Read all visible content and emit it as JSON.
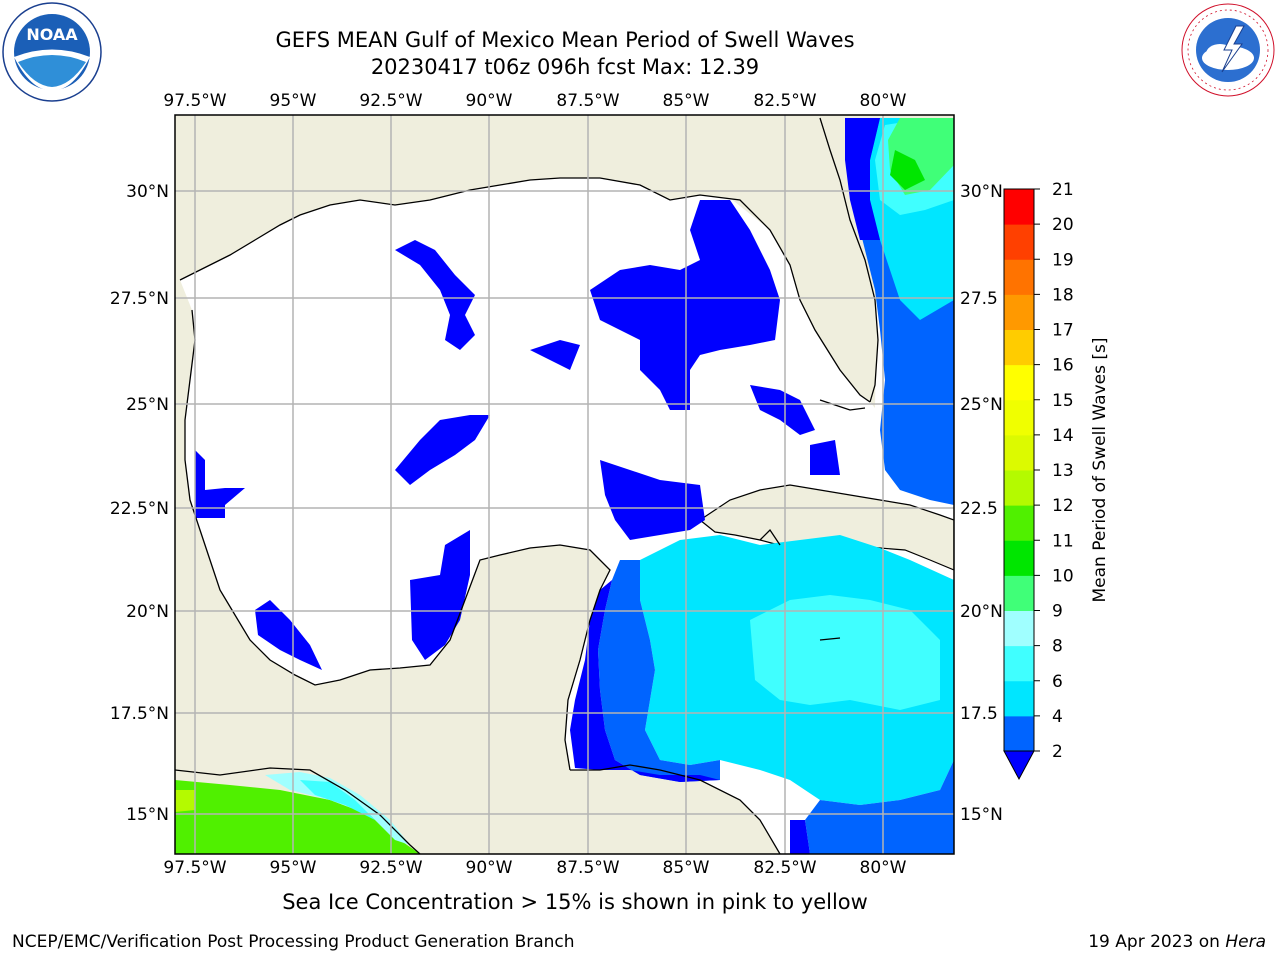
{
  "header": {
    "title_line1": "GEFS MEAN Gulf of Mexico Mean Period of Swell Waves",
    "title_line2": "20230417 t06z 096h fcst   Max: 12.39"
  },
  "logos": {
    "left": "NOAA",
    "left_ring_text": "NATIONAL OCEANIC AND ATMOSPHERIC ADMINISTRATION · U.S. DEPARTMENT OF COMMERCE",
    "right_ring_text": "NATIONAL WEATHER SERVICE"
  },
  "map": {
    "lon_labels": [
      "97.5°W",
      "95°W",
      "92.5°W",
      "90°W",
      "87.5°W",
      "85°W",
      "82.5°W",
      "80°W"
    ],
    "lat_labels_left": [
      "30°N",
      "27.5°N",
      "25°N",
      "22.5°N",
      "20°N",
      "17.5°N",
      "15°N"
    ],
    "lat_labels_right": [
      "30°N",
      "27.5",
      "25°N",
      "22.5",
      "20°N",
      "17.5",
      "15°N"
    ],
    "lon_range": [
      -98,
      -78.25
    ],
    "lat_range": [
      14,
      31.5
    ],
    "colors": {
      "land": "#efeedd",
      "water_low": "#ffffff",
      "coast": "#000000",
      "grid": "#b4b4b4"
    }
  },
  "colorbar": {
    "label": "Mean Period of Swell Waves [s]",
    "ticks": [
      "2",
      "4",
      "6",
      "8",
      "9",
      "10",
      "11",
      "12",
      "13",
      "14",
      "15",
      "16",
      "17",
      "18",
      "19",
      "20",
      "21"
    ],
    "colors": [
      "#0064ff",
      "#00e6ff",
      "#40ffff",
      "#a0ffff",
      "#40ff78",
      "#00e600",
      "#50f000",
      "#b4fa00",
      "#dcfa00",
      "#f0ff00",
      "#ffff00",
      "#ffcc00",
      "#ff9900",
      "#ff7300",
      "#ff4000",
      "#ff0000"
    ],
    "extend_color": "#0000ff"
  },
  "footer": {
    "note": "Sea Ice Concentration > 15% is shown in pink to yellow",
    "left": "NCEP/EMC/Verification Post Processing Product Generation Branch",
    "right_date": "19 Apr 2023 on ",
    "right_machine": "Hera"
  }
}
